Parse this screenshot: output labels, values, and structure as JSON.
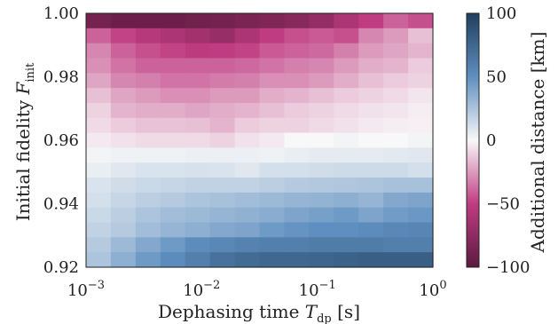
{
  "chart_data": {
    "type": "heatmap",
    "xlabel": {
      "main": "Dephasing time ",
      "var": "T",
      "sub": "dp",
      "unit": " [s]"
    },
    "ylabel": {
      "main": "Initial fidelity ",
      "var": "F",
      "sub": "init"
    },
    "colorbar_label": "Additional distance [km]",
    "x_scale": "log",
    "x_range": [
      0.001,
      1.0
    ],
    "y_range": [
      0.92,
      1.0
    ],
    "x_ticks": [
      {
        "base": "10",
        "exp": "−3",
        "value": 0.001
      },
      {
        "base": "10",
        "exp": "−2",
        "value": 0.01
      },
      {
        "base": "10",
        "exp": "−1",
        "value": 0.1
      },
      {
        "base": "10",
        "exp": "0",
        "value": 1.0
      }
    ],
    "y_ticks": [
      "0.92",
      "0.94",
      "0.96",
      "0.98",
      "1.00"
    ],
    "y_tick_values": [
      0.92,
      0.94,
      0.96,
      0.98,
      1.0
    ],
    "colorbar_ticks": [
      "−100",
      "−50",
      "0",
      "50",
      "100"
    ],
    "colorbar_tick_values": [
      -100,
      -50,
      0,
      50,
      100
    ],
    "color_range": [
      -100,
      100
    ],
    "colormap": {
      "low": "#5c1a3f",
      "mid_low": "#c03c82",
      "mid": "#f8f8f8",
      "mid_high": "#5f8fc0",
      "high": "#1f3f5e"
    },
    "rows_top_to_bottom": [
      [
        -88,
        -92,
        -92,
        -92,
        -90,
        -88,
        -85,
        -82,
        -78,
        -72,
        -60,
        -50,
        -40,
        -45
      ],
      [
        -40,
        -48,
        -55,
        -60,
        -65,
        -70,
        -60,
        -50,
        -45,
        -42,
        -45,
        -30,
        -25,
        -15
      ],
      [
        -30,
        -40,
        -45,
        -48,
        -52,
        -50,
        -48,
        -42,
        -40,
        -38,
        -32,
        -25,
        -22,
        -18
      ],
      [
        -28,
        -35,
        -40,
        -40,
        -40,
        -40,
        -38,
        -35,
        -32,
        -30,
        -25,
        -20,
        -18,
        -12
      ],
      [
        -22,
        -30,
        -32,
        -35,
        -35,
        -33,
        -32,
        -28,
        -28,
        -25,
        -20,
        -15,
        -12,
        -10
      ],
      [
        -15,
        -22,
        -25,
        -28,
        -28,
        -25,
        -25,
        -20,
        -18,
        -15,
        -12,
        -10,
        -8,
        -5
      ],
      [
        -10,
        -18,
        -20,
        -20,
        -22,
        -20,
        -18,
        -15,
        -12,
        -10,
        -8,
        -6,
        -5,
        -3
      ],
      [
        -8,
        -12,
        -14,
        -14,
        -15,
        -18,
        -12,
        -10,
        -10,
        -8,
        -6,
        -4,
        -3,
        -2
      ],
      [
        -4,
        -6,
        -8,
        -8,
        -8,
        -10,
        -6,
        -4,
        0,
        0,
        2,
        0,
        0,
        2
      ],
      [
        2,
        3,
        3,
        3,
        4,
        4,
        4,
        3,
        5,
        6,
        6,
        6,
        7,
        8
      ],
      [
        5,
        8,
        10,
        10,
        11,
        10,
        8,
        12,
        12,
        13,
        14,
        14,
        14,
        12
      ],
      [
        10,
        13,
        15,
        16,
        18,
        18,
        18,
        20,
        22,
        23,
        24,
        25,
        26,
        26
      ],
      [
        12,
        16,
        20,
        22,
        25,
        26,
        28,
        30,
        32,
        33,
        35,
        32,
        38,
        40
      ],
      [
        15,
        20,
        25,
        28,
        30,
        32,
        34,
        36,
        40,
        42,
        45,
        40,
        44,
        46
      ],
      [
        18,
        22,
        28,
        32,
        35,
        38,
        40,
        45,
        48,
        50,
        50,
        52,
        55,
        56
      ],
      [
        22,
        30,
        38,
        45,
        52,
        55,
        58,
        60,
        60,
        62,
        62,
        62,
        60,
        60
      ],
      [
        25,
        35,
        45,
        52,
        60,
        68,
        72,
        75,
        75,
        76,
        78,
        80,
        80,
        80
      ]
    ]
  }
}
